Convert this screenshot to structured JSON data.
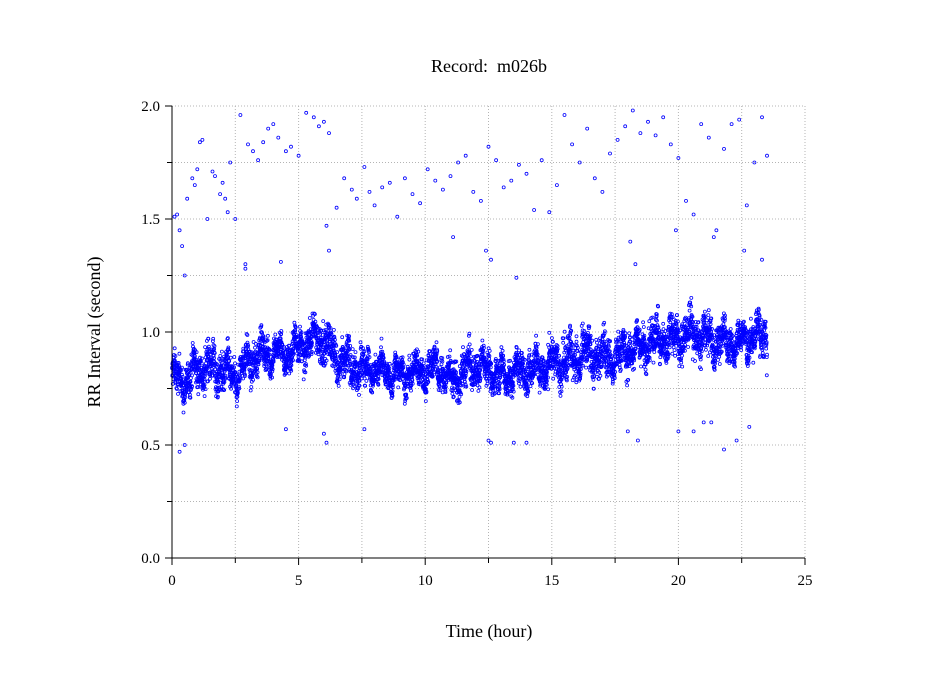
{
  "chart_data": {
    "type": "scatter",
    "title": "Record:  m026b",
    "xlabel": "Time (hour)",
    "ylabel": "RR Interval (second)",
    "xlim": [
      0,
      25
    ],
    "ylim": [
      0.0,
      2.0
    ],
    "x_ticks": [
      "0",
      "5",
      "10",
      "15",
      "20",
      "25"
    ],
    "y_ticks": [
      "0.0",
      "0.5",
      "1.0",
      "1.5",
      "2.0"
    ],
    "grid": true,
    "marker": "open-circle",
    "point_color": "#0000ff",
    "grid_color": "#b4b4b4",
    "band_trend": [
      [
        0.0,
        0.8,
        0.07
      ],
      [
        0.5,
        0.78,
        0.07
      ],
      [
        1.0,
        0.84,
        0.08
      ],
      [
        1.5,
        0.85,
        0.09
      ],
      [
        2.0,
        0.83,
        0.08
      ],
      [
        2.5,
        0.8,
        0.07
      ],
      [
        3.0,
        0.87,
        0.07
      ],
      [
        3.5,
        0.9,
        0.07
      ],
      [
        4.0,
        0.91,
        0.06
      ],
      [
        4.5,
        0.9,
        0.06
      ],
      [
        5.0,
        0.93,
        0.07
      ],
      [
        5.5,
        0.96,
        0.07
      ],
      [
        6.0,
        0.98,
        0.09
      ],
      [
        6.5,
        0.88,
        0.08
      ],
      [
        7.0,
        0.85,
        0.08
      ],
      [
        7.5,
        0.83,
        0.07
      ],
      [
        8.0,
        0.84,
        0.07
      ],
      [
        8.5,
        0.82,
        0.06
      ],
      [
        9.0,
        0.81,
        0.06
      ],
      [
        9.5,
        0.82,
        0.06
      ],
      [
        10.0,
        0.83,
        0.07
      ],
      [
        10.5,
        0.85,
        0.07
      ],
      [
        11.0,
        0.78,
        0.07
      ],
      [
        11.5,
        0.82,
        0.08
      ],
      [
        12.0,
        0.85,
        0.07
      ],
      [
        12.5,
        0.84,
        0.07
      ],
      [
        13.0,
        0.8,
        0.07
      ],
      [
        13.5,
        0.82,
        0.07
      ],
      [
        14.0,
        0.83,
        0.07
      ],
      [
        14.5,
        0.84,
        0.08
      ],
      [
        15.0,
        0.86,
        0.08
      ],
      [
        15.5,
        0.88,
        0.09
      ],
      [
        16.0,
        0.89,
        0.09
      ],
      [
        16.5,
        0.9,
        0.09
      ],
      [
        17.0,
        0.89,
        0.09
      ],
      [
        17.5,
        0.88,
        0.08
      ],
      [
        18.0,
        0.92,
        0.08
      ],
      [
        18.5,
        0.94,
        0.08
      ],
      [
        19.0,
        0.96,
        0.08
      ],
      [
        19.5,
        0.97,
        0.08
      ],
      [
        20.0,
        0.98,
        0.09
      ],
      [
        20.5,
        1.0,
        0.09
      ],
      [
        21.0,
        0.97,
        0.08
      ],
      [
        21.5,
        0.96,
        0.08
      ],
      [
        22.0,
        0.95,
        0.07
      ],
      [
        22.5,
        0.96,
        0.07
      ],
      [
        23.0,
        0.98,
        0.08
      ],
      [
        23.5,
        0.98,
        0.09
      ]
    ],
    "x_end": 23.5,
    "outliers": [
      [
        0.1,
        1.51
      ],
      [
        0.2,
        1.52
      ],
      [
        0.3,
        1.45
      ],
      [
        0.4,
        1.38
      ],
      [
        0.5,
        1.25
      ],
      [
        0.6,
        1.59
      ],
      [
        0.8,
        1.68
      ],
      [
        0.9,
        1.65
      ],
      [
        1.0,
        1.72
      ],
      [
        1.1,
        1.84
      ],
      [
        1.2,
        1.85
      ],
      [
        1.4,
        1.5
      ],
      [
        1.6,
        1.71
      ],
      [
        1.7,
        1.69
      ],
      [
        1.9,
        1.61
      ],
      [
        2.0,
        1.66
      ],
      [
        2.1,
        1.59
      ],
      [
        2.2,
        1.53
      ],
      [
        2.3,
        1.75
      ],
      [
        2.5,
        1.5
      ],
      [
        2.7,
        1.96
      ],
      [
        2.9,
        1.28
      ],
      [
        3.0,
        1.83
      ],
      [
        3.2,
        1.8
      ],
      [
        3.4,
        1.76
      ],
      [
        3.6,
        1.84
      ],
      [
        3.8,
        1.9
      ],
      [
        4.0,
        1.92
      ],
      [
        4.2,
        1.86
      ],
      [
        4.5,
        1.8
      ],
      [
        4.7,
        1.82
      ],
      [
        5.0,
        1.78
      ],
      [
        5.3,
        1.97
      ],
      [
        5.6,
        1.95
      ],
      [
        5.8,
        1.91
      ],
      [
        6.0,
        1.93
      ],
      [
        6.2,
        1.88
      ],
      [
        6.5,
        1.55
      ],
      [
        6.8,
        1.68
      ],
      [
        7.1,
        1.63
      ],
      [
        7.3,
        1.59
      ],
      [
        7.6,
        1.73
      ],
      [
        7.8,
        1.62
      ],
      [
        8.0,
        1.56
      ],
      [
        8.3,
        1.64
      ],
      [
        8.6,
        1.66
      ],
      [
        8.9,
        1.51
      ],
      [
        9.2,
        1.68
      ],
      [
        9.5,
        1.61
      ],
      [
        9.8,
        1.57
      ],
      [
        10.1,
        1.72
      ],
      [
        10.4,
        1.67
      ],
      [
        10.7,
        1.63
      ],
      [
        11.0,
        1.69
      ],
      [
        11.3,
        1.75
      ],
      [
        11.6,
        1.78
      ],
      [
        11.9,
        1.62
      ],
      [
        12.2,
        1.58
      ],
      [
        12.5,
        1.82
      ],
      [
        12.8,
        1.76
      ],
      [
        13.1,
        1.64
      ],
      [
        13.4,
        1.67
      ],
      [
        13.7,
        1.74
      ],
      [
        14.0,
        1.7
      ],
      [
        14.3,
        1.54
      ],
      [
        14.6,
        1.76
      ],
      [
        14.9,
        1.53
      ],
      [
        15.2,
        1.65
      ],
      [
        15.5,
        1.96
      ],
      [
        15.8,
        1.83
      ],
      [
        16.1,
        1.75
      ],
      [
        16.4,
        1.9
      ],
      [
        16.7,
        1.68
      ],
      [
        17.0,
        1.62
      ],
      [
        17.3,
        1.79
      ],
      [
        17.6,
        1.85
      ],
      [
        17.9,
        1.91
      ],
      [
        18.2,
        1.98
      ],
      [
        18.5,
        1.88
      ],
      [
        18.8,
        1.93
      ],
      [
        19.1,
        1.87
      ],
      [
        19.4,
        1.95
      ],
      [
        19.7,
        1.83
      ],
      [
        20.0,
        1.77
      ],
      [
        20.3,
        1.58
      ],
      [
        20.6,
        1.52
      ],
      [
        20.9,
        1.92
      ],
      [
        21.2,
        1.86
      ],
      [
        21.5,
        1.45
      ],
      [
        21.8,
        1.81
      ],
      [
        22.1,
        1.92
      ],
      [
        22.4,
        1.94
      ],
      [
        22.7,
        1.56
      ],
      [
        23.0,
        1.75
      ],
      [
        23.3,
        1.95
      ],
      [
        23.5,
        1.78
      ],
      [
        0.3,
        0.47
      ],
      [
        0.5,
        0.5
      ],
      [
        4.5,
        0.57
      ],
      [
        6.0,
        0.55
      ],
      [
        6.1,
        0.51
      ],
      [
        7.6,
        0.57
      ],
      [
        12.5,
        0.52
      ],
      [
        12.6,
        0.51
      ],
      [
        13.5,
        0.51
      ],
      [
        14.0,
        0.51
      ],
      [
        18.0,
        0.56
      ],
      [
        18.4,
        0.52
      ],
      [
        20.0,
        0.56
      ],
      [
        20.6,
        0.56
      ],
      [
        21.0,
        0.6
      ],
      [
        21.3,
        0.6
      ],
      [
        21.8,
        0.48
      ],
      [
        22.3,
        0.52
      ],
      [
        22.8,
        0.58
      ],
      [
        2.9,
        1.3
      ],
      [
        4.3,
        1.31
      ],
      [
        6.1,
        1.47
      ],
      [
        6.2,
        1.36
      ],
      [
        12.6,
        1.32
      ],
      [
        12.4,
        1.36
      ],
      [
        18.1,
        1.4
      ],
      [
        18.3,
        1.3
      ],
      [
        19.9,
        1.45
      ],
      [
        21.4,
        1.42
      ],
      [
        22.6,
        1.36
      ],
      [
        23.3,
        1.32
      ],
      [
        11.1,
        1.42
      ],
      [
        13.6,
        1.24
      ]
    ]
  }
}
